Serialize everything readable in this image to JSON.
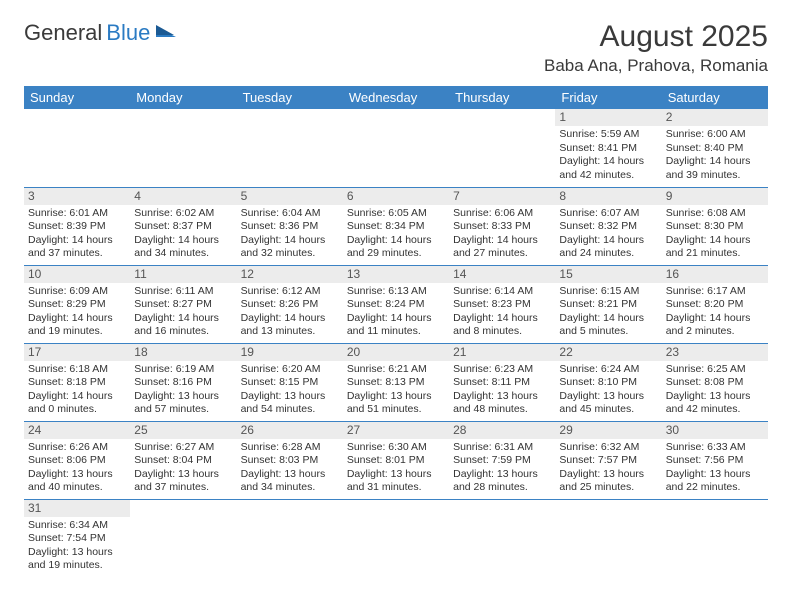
{
  "logo": {
    "text_dark": "General",
    "text_blue": "Blue"
  },
  "title": "August 2025",
  "location": "Baba Ana, Prahova, Romania",
  "colors": {
    "header_bg": "#3b82c4",
    "header_fg": "#ffffff",
    "daynum_bg": "#ececec",
    "row_border": "#3b82c4",
    "text": "#333333"
  },
  "day_headers": [
    "Sunday",
    "Monday",
    "Tuesday",
    "Wednesday",
    "Thursday",
    "Friday",
    "Saturday"
  ],
  "weeks": [
    [
      null,
      null,
      null,
      null,
      null,
      {
        "n": "1",
        "sunrise": "Sunrise: 5:59 AM",
        "sunset": "Sunset: 8:41 PM",
        "daylight": "Daylight: 14 hours and 42 minutes."
      },
      {
        "n": "2",
        "sunrise": "Sunrise: 6:00 AM",
        "sunset": "Sunset: 8:40 PM",
        "daylight": "Daylight: 14 hours and 39 minutes."
      }
    ],
    [
      {
        "n": "3",
        "sunrise": "Sunrise: 6:01 AM",
        "sunset": "Sunset: 8:39 PM",
        "daylight": "Daylight: 14 hours and 37 minutes."
      },
      {
        "n": "4",
        "sunrise": "Sunrise: 6:02 AM",
        "sunset": "Sunset: 8:37 PM",
        "daylight": "Daylight: 14 hours and 34 minutes."
      },
      {
        "n": "5",
        "sunrise": "Sunrise: 6:04 AM",
        "sunset": "Sunset: 8:36 PM",
        "daylight": "Daylight: 14 hours and 32 minutes."
      },
      {
        "n": "6",
        "sunrise": "Sunrise: 6:05 AM",
        "sunset": "Sunset: 8:34 PM",
        "daylight": "Daylight: 14 hours and 29 minutes."
      },
      {
        "n": "7",
        "sunrise": "Sunrise: 6:06 AM",
        "sunset": "Sunset: 8:33 PM",
        "daylight": "Daylight: 14 hours and 27 minutes."
      },
      {
        "n": "8",
        "sunrise": "Sunrise: 6:07 AM",
        "sunset": "Sunset: 8:32 PM",
        "daylight": "Daylight: 14 hours and 24 minutes."
      },
      {
        "n": "9",
        "sunrise": "Sunrise: 6:08 AM",
        "sunset": "Sunset: 8:30 PM",
        "daylight": "Daylight: 14 hours and 21 minutes."
      }
    ],
    [
      {
        "n": "10",
        "sunrise": "Sunrise: 6:09 AM",
        "sunset": "Sunset: 8:29 PM",
        "daylight": "Daylight: 14 hours and 19 minutes."
      },
      {
        "n": "11",
        "sunrise": "Sunrise: 6:11 AM",
        "sunset": "Sunset: 8:27 PM",
        "daylight": "Daylight: 14 hours and 16 minutes."
      },
      {
        "n": "12",
        "sunrise": "Sunrise: 6:12 AM",
        "sunset": "Sunset: 8:26 PM",
        "daylight": "Daylight: 14 hours and 13 minutes."
      },
      {
        "n": "13",
        "sunrise": "Sunrise: 6:13 AM",
        "sunset": "Sunset: 8:24 PM",
        "daylight": "Daylight: 14 hours and 11 minutes."
      },
      {
        "n": "14",
        "sunrise": "Sunrise: 6:14 AM",
        "sunset": "Sunset: 8:23 PM",
        "daylight": "Daylight: 14 hours and 8 minutes."
      },
      {
        "n": "15",
        "sunrise": "Sunrise: 6:15 AM",
        "sunset": "Sunset: 8:21 PM",
        "daylight": "Daylight: 14 hours and 5 minutes."
      },
      {
        "n": "16",
        "sunrise": "Sunrise: 6:17 AM",
        "sunset": "Sunset: 8:20 PM",
        "daylight": "Daylight: 14 hours and 2 minutes."
      }
    ],
    [
      {
        "n": "17",
        "sunrise": "Sunrise: 6:18 AM",
        "sunset": "Sunset: 8:18 PM",
        "daylight": "Daylight: 14 hours and 0 minutes."
      },
      {
        "n": "18",
        "sunrise": "Sunrise: 6:19 AM",
        "sunset": "Sunset: 8:16 PM",
        "daylight": "Daylight: 13 hours and 57 minutes."
      },
      {
        "n": "19",
        "sunrise": "Sunrise: 6:20 AM",
        "sunset": "Sunset: 8:15 PM",
        "daylight": "Daylight: 13 hours and 54 minutes."
      },
      {
        "n": "20",
        "sunrise": "Sunrise: 6:21 AM",
        "sunset": "Sunset: 8:13 PM",
        "daylight": "Daylight: 13 hours and 51 minutes."
      },
      {
        "n": "21",
        "sunrise": "Sunrise: 6:23 AM",
        "sunset": "Sunset: 8:11 PM",
        "daylight": "Daylight: 13 hours and 48 minutes."
      },
      {
        "n": "22",
        "sunrise": "Sunrise: 6:24 AM",
        "sunset": "Sunset: 8:10 PM",
        "daylight": "Daylight: 13 hours and 45 minutes."
      },
      {
        "n": "23",
        "sunrise": "Sunrise: 6:25 AM",
        "sunset": "Sunset: 8:08 PM",
        "daylight": "Daylight: 13 hours and 42 minutes."
      }
    ],
    [
      {
        "n": "24",
        "sunrise": "Sunrise: 6:26 AM",
        "sunset": "Sunset: 8:06 PM",
        "daylight": "Daylight: 13 hours and 40 minutes."
      },
      {
        "n": "25",
        "sunrise": "Sunrise: 6:27 AM",
        "sunset": "Sunset: 8:04 PM",
        "daylight": "Daylight: 13 hours and 37 minutes."
      },
      {
        "n": "26",
        "sunrise": "Sunrise: 6:28 AM",
        "sunset": "Sunset: 8:03 PM",
        "daylight": "Daylight: 13 hours and 34 minutes."
      },
      {
        "n": "27",
        "sunrise": "Sunrise: 6:30 AM",
        "sunset": "Sunset: 8:01 PM",
        "daylight": "Daylight: 13 hours and 31 minutes."
      },
      {
        "n": "28",
        "sunrise": "Sunrise: 6:31 AM",
        "sunset": "Sunset: 7:59 PM",
        "daylight": "Daylight: 13 hours and 28 minutes."
      },
      {
        "n": "29",
        "sunrise": "Sunrise: 6:32 AM",
        "sunset": "Sunset: 7:57 PM",
        "daylight": "Daylight: 13 hours and 25 minutes."
      },
      {
        "n": "30",
        "sunrise": "Sunrise: 6:33 AM",
        "sunset": "Sunset: 7:56 PM",
        "daylight": "Daylight: 13 hours and 22 minutes."
      }
    ],
    [
      {
        "n": "31",
        "sunrise": "Sunrise: 6:34 AM",
        "sunset": "Sunset: 7:54 PM",
        "daylight": "Daylight: 13 hours and 19 minutes."
      },
      null,
      null,
      null,
      null,
      null,
      null
    ]
  ]
}
